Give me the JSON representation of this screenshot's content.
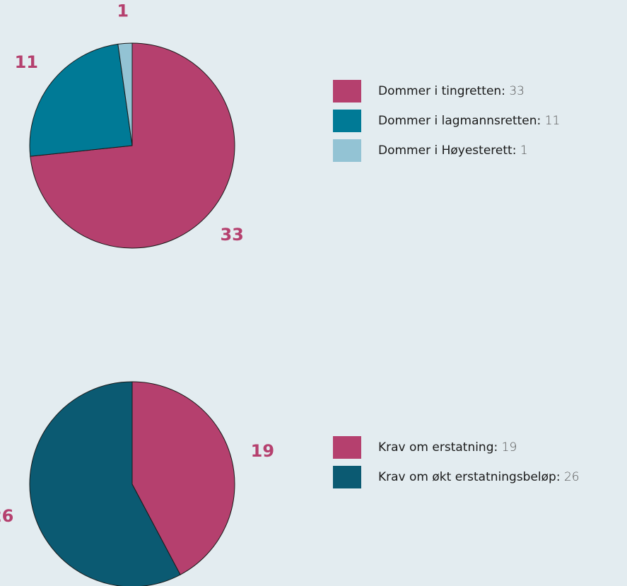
{
  "chart_data": [
    {
      "type": "pie",
      "categories": [
        "Dommer i tingretten",
        "Dommer i lagmannsretten",
        "Dommer i Høyesterett"
      ],
      "values": [
        33,
        11,
        1
      ],
      "colors": [
        "#b5406e",
        "#007a96",
        "#93c3d4"
      ]
    },
    {
      "type": "pie",
      "categories": [
        "Krav om erstatning",
        "Krav om økt erstatningsbeløp"
      ],
      "values": [
        19,
        26
      ],
      "colors": [
        "#b5406e",
        "#0b5a72"
      ]
    }
  ]
}
